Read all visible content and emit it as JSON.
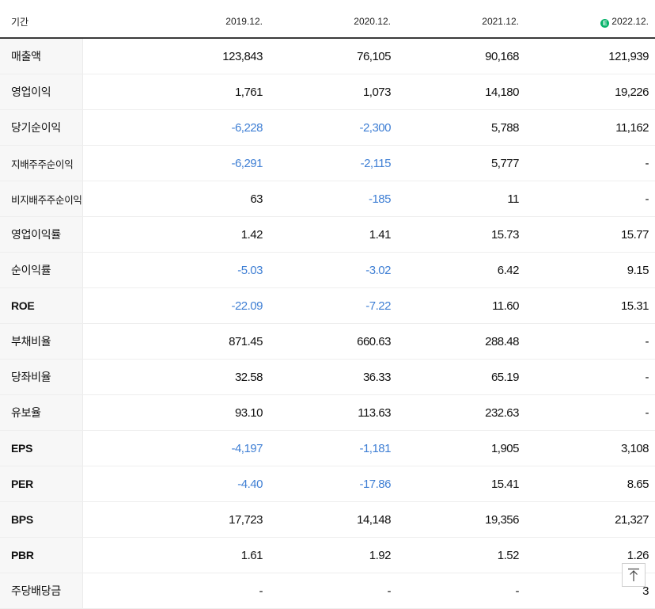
{
  "header": {
    "label": "기간",
    "estimate_badge": "E",
    "periods": [
      "2019.12.",
      "2020.12.",
      "2021.12.",
      "2022.12."
    ]
  },
  "rows": [
    {
      "label": "매출액",
      "values": [
        "123,843",
        "76,105",
        "90,168",
        "121,939"
      ]
    },
    {
      "label": "영업이익",
      "values": [
        "1,761",
        "1,073",
        "14,180",
        "19,226"
      ]
    },
    {
      "label": "당기순이익",
      "values": [
        "-6,228",
        "-2,300",
        "5,788",
        "11,162"
      ]
    },
    {
      "label": "지배주주순이익",
      "values": [
        "-6,291",
        "-2,115",
        "5,777",
        "-"
      ]
    },
    {
      "label": "비지배주주순이익",
      "values": [
        "63",
        "-185",
        "11",
        "-"
      ]
    },
    {
      "label": "영업이익률",
      "values": [
        "1.42",
        "1.41",
        "15.73",
        "15.77"
      ]
    },
    {
      "label": "순이익률",
      "values": [
        "-5.03",
        "-3.02",
        "6.42",
        "9.15"
      ]
    },
    {
      "label": "ROE",
      "values": [
        "-22.09",
        "-7.22",
        "11.60",
        "15.31"
      ]
    },
    {
      "label": "부채비율",
      "values": [
        "871.45",
        "660.63",
        "288.48",
        "-"
      ]
    },
    {
      "label": "당좌비율",
      "values": [
        "32.58",
        "36.33",
        "65.19",
        "-"
      ]
    },
    {
      "label": "유보율",
      "values": [
        "93.10",
        "113.63",
        "232.63",
        "-"
      ]
    },
    {
      "label": "EPS",
      "values": [
        "-4,197",
        "-1,181",
        "1,905",
        "3,108"
      ]
    },
    {
      "label": "PER",
      "values": [
        "-4.40",
        "-17.86",
        "15.41",
        "8.65"
      ]
    },
    {
      "label": "BPS",
      "values": [
        "17,723",
        "14,148",
        "19,356",
        "21,327"
      ]
    },
    {
      "label": "PBR",
      "values": [
        "1.61",
        "1.92",
        "1.52",
        "1.26"
      ]
    },
    {
      "label": "주당배당금",
      "values": [
        "-",
        "-",
        "-",
        "3"
      ]
    }
  ],
  "colors": {
    "negative": "#3f7fd4",
    "estimate_badge": "#08b36a"
  },
  "scroll_top_icon": "arrow-up-icon"
}
